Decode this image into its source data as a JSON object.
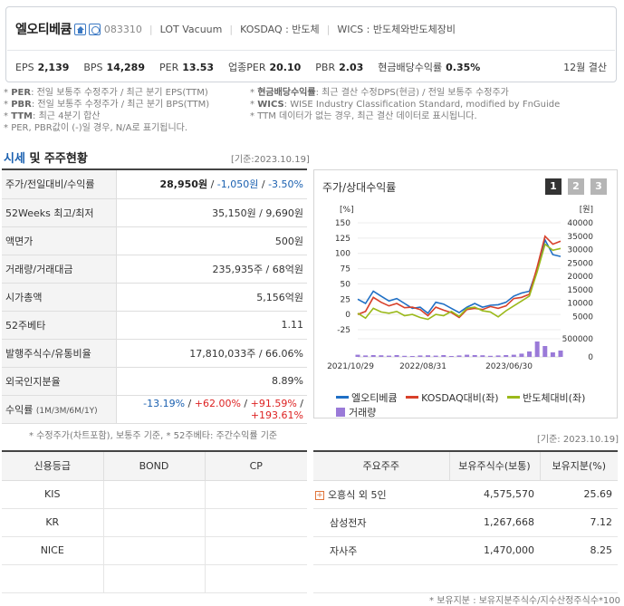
{
  "header": {
    "company": "엘오티베큠",
    "code": "083310",
    "english_name": "LOT Vacuum",
    "market": "KOSDAQ : 반도체",
    "wics": "WICS : 반도체와반도체장비",
    "indicators": [
      {
        "label": "EPS",
        "value": "2,139"
      },
      {
        "label": "BPS",
        "value": "14,289"
      },
      {
        "label": "PER",
        "value": "13.53"
      },
      {
        "label": "업종PER",
        "value": "20.10"
      },
      {
        "label": "PBR",
        "value": "2.03"
      },
      {
        "label": "현금배당수익률",
        "value": "0.35%"
      }
    ],
    "fiscal": "12월 결산"
  },
  "notes": {
    "left": [
      {
        "key": "PER",
        "text": ": 전일 보통주 수정주가 / 최근 분기 EPS(TTM)"
      },
      {
        "key": "PBR",
        "text": ": 전일 보통주 수정주가 / 최근 분기 BPS(TTM)"
      },
      {
        "key": "TTM",
        "text": ": 최근 4분기 합산"
      },
      {
        "key": "",
        "text": "PER, PBR값이 (-)일 경우, N/A로 표기됩니다."
      }
    ],
    "right": [
      {
        "key": "현금배당수익률",
        "text": ": 최근 결산 수정DPS(현금) / 전일 보통주 수정주가"
      },
      {
        "key": "WICS",
        "text": ": WISE Industry Classification Standard, modified by FnGuide"
      },
      {
        "key": "",
        "text": "TTM 데이터가 없는 경우, 최근 결산 데이터로 표시됩니다."
      }
    ]
  },
  "section": {
    "title_hl": "시세",
    "title_rest": " 및 주주현황",
    "date": "[기준:2023.10.19]"
  },
  "price_table": {
    "price_label": "주가/전일대비/수익률",
    "price": "28,950원",
    "change": "-1,050원",
    "change_pct": "-3.50%",
    "rows": [
      {
        "label": "52Weeks 최고/최저",
        "value": "35,150원 / 9,690원"
      },
      {
        "label": "액면가",
        "value": "500원"
      },
      {
        "label": "거래량/거래대금",
        "value": "235,935주 / 68억원"
      },
      {
        "label": "시가총액",
        "value": "5,156억원"
      },
      {
        "label": "52주베타",
        "value": "1.11"
      },
      {
        "label": "발행주식수/유통비율",
        "value": "17,810,033주 / 66.06%"
      },
      {
        "label": "외국인지분율",
        "value": "8.89%"
      }
    ],
    "return_label": "수익률",
    "return_period": "(1M/3M/6M/1Y)",
    "returns": [
      "-13.19%",
      "+62.00%",
      "+91.59%",
      "+193.61%"
    ],
    "note": "* 수정주가(차트포함), 보통주 기준, * 52주베타: 주간수익률 기준"
  },
  "chart_panel": {
    "title": "주가/상대수익률",
    "tabs": [
      "1",
      "2",
      "3"
    ],
    "legend": [
      "엘오티베큠",
      "KOSDAQ대비(좌)",
      "반도체대비(좌)",
      "거래량"
    ],
    "colors": {
      "stock": "#1f6fc5",
      "kosdaq": "#d8402a",
      "semi": "#9bb91a",
      "volume": "#9a7ad8"
    }
  },
  "chart_data": {
    "type": "line",
    "x_labels": [
      "2021/10/29",
      "2022/08/31",
      "2023/06/30"
    ],
    "left_axis_unit": "[%]",
    "right_axis_unit": "[원]",
    "left_ticks": [
      150,
      125,
      100,
      75,
      50,
      25,
      0,
      -25
    ],
    "right_ticks": [
      40000,
      35000,
      30000,
      25000,
      20000,
      15000,
      10000,
      5000
    ],
    "volume_ticks": [
      500000,
      0
    ],
    "ylim_left": [
      -25,
      150
    ],
    "series": [
      {
        "name": "엘오티베큠",
        "values": [
          25,
          18,
          38,
          30,
          22,
          26,
          18,
          10,
          12,
          2,
          20,
          17,
          10,
          3,
          12,
          18,
          12,
          15,
          16,
          20,
          30,
          35,
          38,
          75,
          122,
          98,
          95
        ]
      },
      {
        "name": "KOSDAQ대비(좌)",
        "values": [
          0,
          5,
          28,
          20,
          14,
          18,
          11,
          12,
          8,
          -2,
          12,
          7,
          3,
          -5,
          8,
          10,
          8,
          13,
          10,
          14,
          26,
          28,
          33,
          78,
          128,
          115,
          120
        ]
      },
      {
        "name": "반도체대비(좌)",
        "values": [
          2,
          -6,
          10,
          4,
          2,
          5,
          -2,
          0,
          -5,
          -8,
          0,
          -2,
          5,
          -3,
          10,
          12,
          6,
          4,
          -4,
          6,
          14,
          22,
          30,
          70,
          115,
          105,
          108
        ]
      }
    ],
    "volume": [
      0.12,
      0.08,
      0.1,
      0.09,
      0.07,
      0.1,
      0.06,
      0.05,
      0.08,
      0.09,
      0.07,
      0.1,
      0.05,
      0.08,
      0.12,
      0.1,
      0.09,
      0.06,
      0.08,
      0.1,
      0.12,
      0.18,
      0.3,
      0.85,
      0.6,
      0.25,
      0.35
    ]
  },
  "credit_table": {
    "date": "[기준: 2023.10.19]",
    "headers": [
      "신용등급",
      "BOND",
      "CP"
    ],
    "rows": [
      [
        "KIS",
        "",
        ""
      ],
      [
        "KR",
        "",
        ""
      ],
      [
        "NICE",
        "",
        ""
      ],
      [
        "",
        "",
        ""
      ]
    ]
  },
  "shareholder_table": {
    "headers": [
      "주요주주",
      "보유주식수(보통)",
      "보유지분(%)"
    ],
    "rows": [
      {
        "name": "오흥식 외 5인",
        "shares": "4,575,570",
        "pct": "25.69",
        "expand": true
      },
      {
        "name": "삼성전자",
        "shares": "1,267,668",
        "pct": "7.12",
        "expand": false
      },
      {
        "name": "자사주",
        "shares": "1,470,000",
        "pct": "8.25",
        "expand": false
      },
      {
        "name": "",
        "shares": "",
        "pct": "",
        "expand": false
      }
    ],
    "note": "* 보유지분 : 보유지분주식수/지수산정주식수*100"
  }
}
